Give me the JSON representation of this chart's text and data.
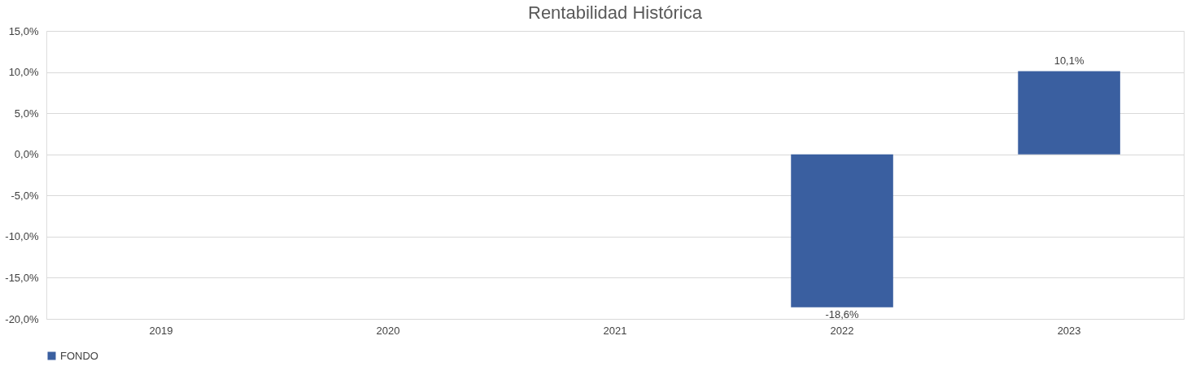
{
  "chart_data": {
    "type": "bar",
    "title": "Rentabilidad Histórica",
    "categories": [
      "2019",
      "2020",
      "2021",
      "2022",
      "2023"
    ],
    "series": [
      {
        "name": "FONDO",
        "color": "#3a5fa0",
        "values": [
          null,
          null,
          null,
          -18.6,
          10.1
        ],
        "value_labels": [
          null,
          null,
          null,
          "-18,6%",
          "10,1%"
        ]
      }
    ],
    "ylim": [
      -20,
      15
    ],
    "yticks": [
      {
        "value": -20,
        "label": "-20,0%"
      },
      {
        "value": -15,
        "label": "-15,0%"
      },
      {
        "value": -10,
        "label": "-10,0%"
      },
      {
        "value": -5,
        "label": "-5,0%"
      },
      {
        "value": 0,
        "label": "0,0%"
      },
      {
        "value": 5,
        "label": "5,0%"
      },
      {
        "value": 10,
        "label": "10,0%"
      },
      {
        "value": 15,
        "label": "15,0%"
      }
    ],
    "grid": "y",
    "legend": "bottom"
  }
}
